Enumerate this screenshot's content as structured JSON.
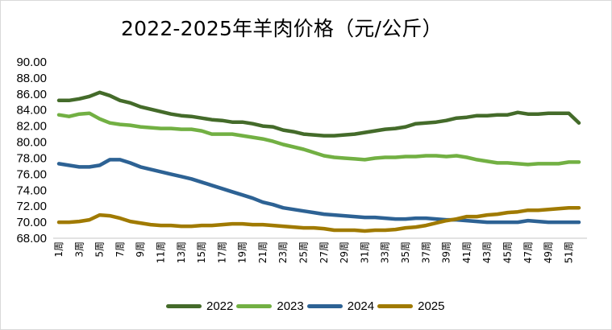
{
  "chart_data": {
    "type": "line",
    "title": "2022-2025年羊肉价格（元/公斤）",
    "xlabel": "",
    "ylabel": "",
    "ylim": [
      68,
      90
    ],
    "yticks": [
      "90.00",
      "88.00",
      "86.00",
      "84.00",
      "82.00",
      "80.00",
      "78.00",
      "76.00",
      "74.00",
      "72.00",
      "70.00",
      "68.00"
    ],
    "ytick_values": [
      90,
      88,
      86,
      84,
      82,
      80,
      78,
      76,
      74,
      72,
      70,
      68
    ],
    "x": [
      1,
      2,
      3,
      4,
      5,
      6,
      7,
      8,
      9,
      10,
      11,
      12,
      13,
      14,
      15,
      16,
      17,
      18,
      19,
      20,
      21,
      22,
      23,
      24,
      25,
      26,
      27,
      28,
      29,
      30,
      31,
      32,
      33,
      34,
      35,
      36,
      37,
      38,
      39,
      40,
      41,
      42,
      43,
      44,
      45,
      46,
      47,
      48,
      49,
      50,
      51,
      52
    ],
    "xtick_labels": [
      "1周",
      "3周",
      "5周",
      "7周",
      "9周",
      "11周",
      "13周",
      "15周",
      "17周",
      "19周",
      "21周",
      "23周",
      "25周",
      "27周",
      "29周",
      "31周",
      "33周",
      "35周",
      "37周",
      "39周",
      "41周",
      "43周",
      "45周",
      "47周",
      "49周",
      "51周"
    ],
    "xtick_weeks": [
      1,
      3,
      5,
      7,
      9,
      11,
      13,
      15,
      17,
      19,
      21,
      23,
      25,
      27,
      29,
      31,
      33,
      35,
      37,
      39,
      41,
      43,
      45,
      47,
      49,
      51
    ],
    "grid": false,
    "legend_position": "bottom",
    "series": [
      {
        "name": "2022",
        "color": "#446b2a",
        "values": [
          85.2,
          85.2,
          85.4,
          85.7,
          86.2,
          85.8,
          85.2,
          84.9,
          84.4,
          84.1,
          83.8,
          83.5,
          83.3,
          83.2,
          83.0,
          82.8,
          82.7,
          82.5,
          82.5,
          82.3,
          82.0,
          81.9,
          81.5,
          81.3,
          81.0,
          80.9,
          80.8,
          80.8,
          80.9,
          81.0,
          81.2,
          81.4,
          81.6,
          81.7,
          81.9,
          82.3,
          82.4,
          82.5,
          82.7,
          83.0,
          83.1,
          83.3,
          83.3,
          83.4,
          83.4,
          83.7,
          83.5,
          83.5,
          83.6,
          83.6,
          83.6,
          82.4
        ]
      },
      {
        "name": "2023",
        "color": "#72b043",
        "values": [
          83.4,
          83.2,
          83.5,
          83.6,
          82.9,
          82.4,
          82.2,
          82.1,
          81.9,
          81.8,
          81.7,
          81.7,
          81.6,
          81.6,
          81.4,
          81.0,
          81.0,
          81.0,
          80.8,
          80.6,
          80.4,
          80.1,
          79.7,
          79.4,
          79.1,
          78.7,
          78.3,
          78.1,
          78.0,
          77.9,
          77.8,
          78.0,
          78.1,
          78.1,
          78.2,
          78.2,
          78.3,
          78.3,
          78.2,
          78.3,
          78.1,
          77.8,
          77.6,
          77.4,
          77.4,
          77.3,
          77.2,
          77.3,
          77.3,
          77.3,
          77.5,
          77.5
        ]
      },
      {
        "name": "2024",
        "color": "#2d6294",
        "values": [
          77.3,
          77.1,
          76.9,
          76.9,
          77.1,
          77.8,
          77.8,
          77.4,
          76.9,
          76.6,
          76.3,
          76.0,
          75.7,
          75.4,
          75.0,
          74.6,
          74.2,
          73.8,
          73.4,
          73.0,
          72.5,
          72.2,
          71.8,
          71.6,
          71.4,
          71.2,
          71.0,
          70.9,
          70.8,
          70.7,
          70.6,
          70.6,
          70.5,
          70.4,
          70.4,
          70.5,
          70.5,
          70.4,
          70.3,
          70.3,
          70.2,
          70.1,
          70.0,
          70.0,
          70.0,
          70.0,
          70.2,
          70.1,
          70.0,
          70.0,
          70.0,
          70.0
        ]
      },
      {
        "name": "2025",
        "color": "#a07a00",
        "values": [
          70.0,
          70.0,
          70.1,
          70.3,
          70.9,
          70.8,
          70.5,
          70.1,
          69.9,
          69.7,
          69.6,
          69.6,
          69.5,
          69.5,
          69.6,
          69.6,
          69.7,
          69.8,
          69.8,
          69.7,
          69.7,
          69.6,
          69.5,
          69.4,
          69.3,
          69.3,
          69.2,
          69.0,
          69.0,
          69.0,
          68.9,
          69.0,
          69.0,
          69.1,
          69.3,
          69.4,
          69.6,
          69.9,
          70.2,
          70.4,
          70.7,
          70.7,
          70.9,
          71.0,
          71.2,
          71.3,
          71.5,
          71.5,
          71.6,
          71.7,
          71.8,
          71.8
        ]
      }
    ]
  }
}
